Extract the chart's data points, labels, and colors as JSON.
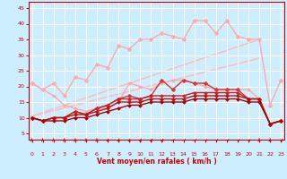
{
  "xlabel": "Vent moyen/en rafales ( km/h )",
  "bg_color": "#cceeff",
  "grid_color": "#ffffff",
  "x": [
    0,
    1,
    2,
    3,
    4,
    5,
    6,
    7,
    8,
    9,
    10,
    11,
    12,
    13,
    14,
    15,
    16,
    17,
    18,
    19,
    20,
    21,
    22,
    23
  ],
  "ylim": [
    3,
    47
  ],
  "xlim": [
    -0.3,
    23.3
  ],
  "yticks": [
    5,
    10,
    15,
    20,
    25,
    30,
    35,
    40,
    45
  ],
  "xticks": [
    0,
    1,
    2,
    3,
    4,
    5,
    6,
    7,
    8,
    9,
    10,
    11,
    12,
    13,
    14,
    15,
    16,
    17,
    18,
    19,
    20,
    21,
    22,
    23
  ],
  "series": [
    {
      "color": "#ffaaaa",
      "lw": 1.0,
      "marker": "D",
      "ms": 2.5,
      "values": [
        21,
        19,
        21,
        17,
        23,
        22,
        27,
        26,
        33,
        32,
        35,
        35,
        37,
        36,
        35,
        41,
        41,
        37,
        41,
        36,
        35,
        35,
        14,
        22
      ]
    },
    {
      "color": "#ffaaaa",
      "lw": 1.0,
      "marker": "D",
      "ms": 2.0,
      "values": [
        21,
        19,
        17,
        14,
        13,
        12,
        13,
        13,
        15,
        21,
        20,
        19,
        21,
        22,
        22,
        21,
        20,
        19,
        19,
        19,
        19,
        16,
        8,
        9
      ]
    },
    {
      "color": "#dd3333",
      "lw": 1.0,
      "marker": "D",
      "ms": 2.5,
      "values": [
        10,
        9,
        10,
        10,
        12,
        11,
        13,
        14,
        16,
        17,
        16,
        17,
        22,
        19,
        22,
        21,
        21,
        19,
        19,
        19,
        16,
        16,
        8,
        9
      ]
    },
    {
      "color": "#cc2222",
      "lw": 1.0,
      "marker": "D",
      "ms": 2.0,
      "values": [
        10,
        9,
        10,
        10,
        12,
        11,
        13,
        14,
        16,
        16,
        16,
        17,
        17,
        17,
        17,
        18,
        18,
        18,
        18,
        18,
        16,
        16,
        8,
        9
      ]
    },
    {
      "color": "#bb1111",
      "lw": 1.0,
      "marker": "D",
      "ms": 2.0,
      "values": [
        10,
        9,
        10,
        10,
        11,
        11,
        12,
        13,
        15,
        15,
        15,
        16,
        16,
        16,
        16,
        17,
        17,
        17,
        17,
        17,
        16,
        16,
        8,
        9
      ]
    },
    {
      "color": "#aa0000",
      "lw": 1.0,
      "marker": "D",
      "ms": 2.0,
      "values": [
        10,
        9,
        9,
        9,
        10,
        10,
        11,
        12,
        13,
        14,
        14,
        15,
        15,
        15,
        15,
        16,
        16,
        16,
        16,
        16,
        15,
        15,
        8,
        9
      ]
    }
  ],
  "trend_lines": [
    {
      "color": "#ffbbbb",
      "lw": 1.0,
      "x0": 0,
      "y0": 10.5,
      "x1": 21,
      "y1": 35
    },
    {
      "color": "#ffbbbb",
      "lw": 1.0,
      "x0": 0,
      "y0": 10.5,
      "x1": 21,
      "y1": 29
    }
  ],
  "arrow_angles": [
    0,
    0,
    0,
    0,
    0,
    0,
    0,
    10,
    10,
    10,
    15,
    20,
    25,
    30,
    35,
    35,
    40,
    40,
    40,
    40,
    40,
    0,
    0,
    30
  ]
}
